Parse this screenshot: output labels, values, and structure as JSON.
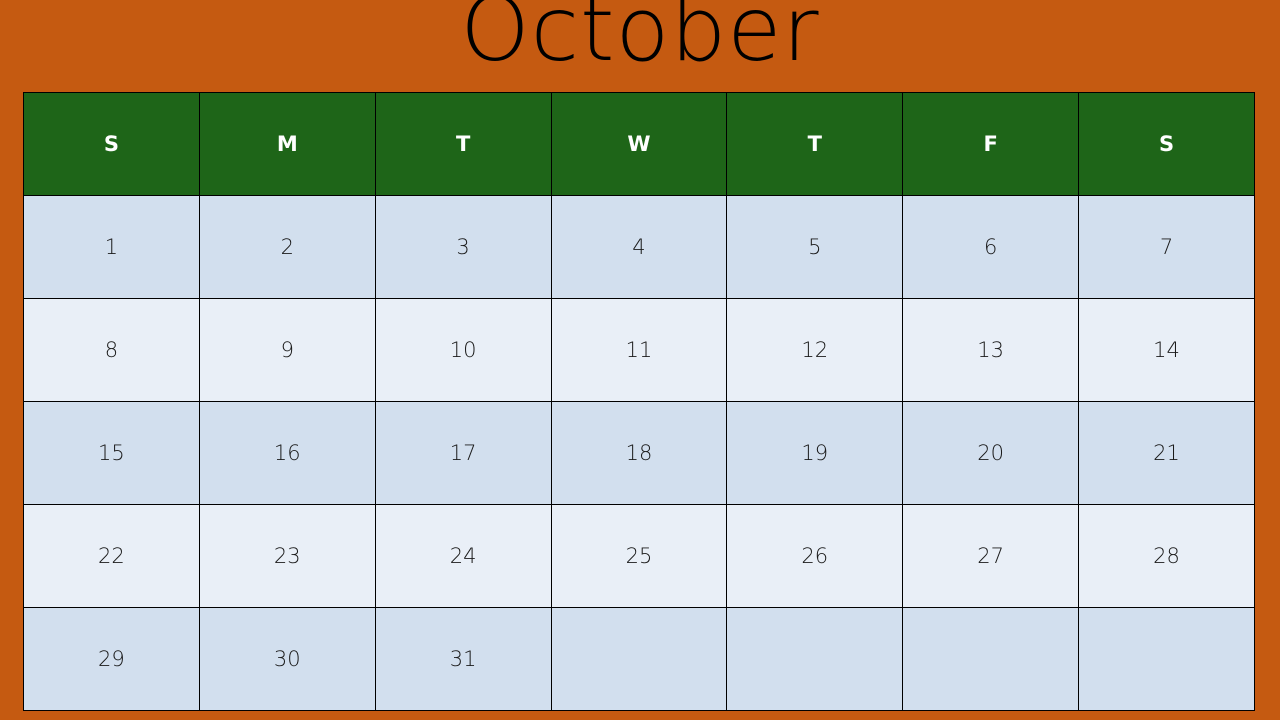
{
  "month": "October",
  "colors": {
    "background": "#C55A11",
    "header_bg": "#1E6518",
    "header_text": "#FFFFFF",
    "row_dark": "#D2DFEE",
    "row_light": "#E9EFF7",
    "border": "#000000"
  },
  "weekdays": [
    "S",
    "M",
    "T",
    "W",
    "T",
    "F",
    "S"
  ],
  "weeks": [
    [
      "1",
      "2",
      "3",
      "4",
      "5",
      "6",
      "7"
    ],
    [
      "8",
      "9",
      "10",
      "11",
      "12",
      "13",
      "14"
    ],
    [
      "15",
      "16",
      "17",
      "18",
      "19",
      "20",
      "21"
    ],
    [
      "22",
      "23",
      "24",
      "25",
      "26",
      "27",
      "28"
    ],
    [
      "29",
      "30",
      "31",
      "",
      "",
      "",
      ""
    ]
  ]
}
